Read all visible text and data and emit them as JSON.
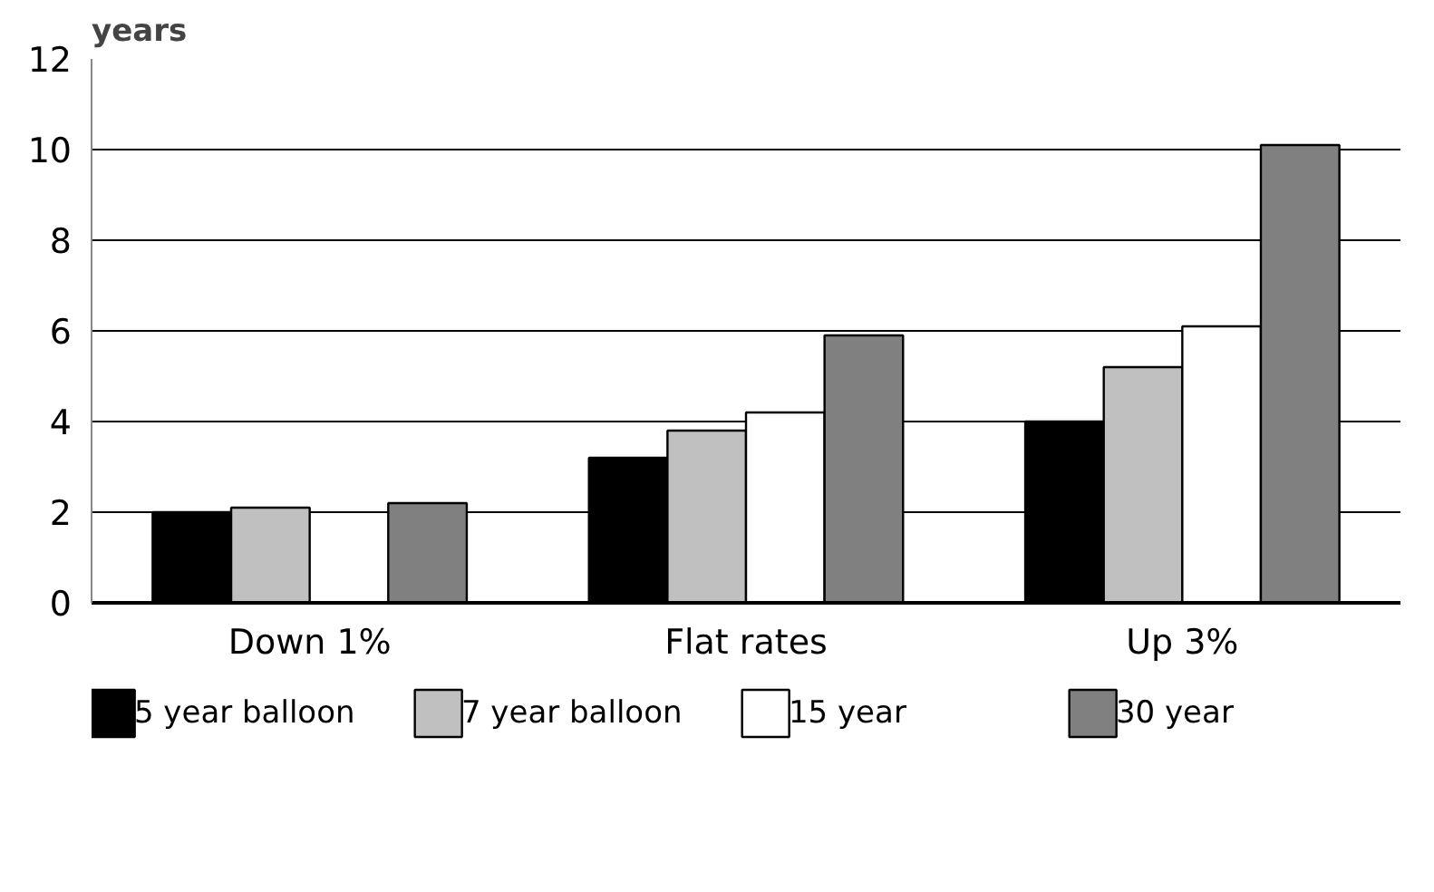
{
  "chart_data": {
    "type": "bar",
    "ylabel": "years",
    "categories": [
      "Down 1%",
      "Flat rates",
      "Up 3%"
    ],
    "series": [
      {
        "name": "5 year balloon",
        "color": "#000000",
        "values": [
          2.0,
          3.2,
          4.0
        ]
      },
      {
        "name": "7 year balloon",
        "color": "#c0c0c0",
        "values": [
          2.1,
          3.8,
          5.2
        ]
      },
      {
        "name": "15 year",
        "color": "#ffffff",
        "values": [
          null,
          4.2,
          6.1
        ]
      },
      {
        "name": "30 year",
        "color": "#808080",
        "values": [
          2.2,
          5.9,
          10.1
        ]
      }
    ],
    "ylim": [
      0,
      12
    ],
    "yticks": [
      0,
      2,
      4,
      6,
      8,
      10,
      12
    ],
    "grid": "y",
    "legend": "bottom"
  }
}
